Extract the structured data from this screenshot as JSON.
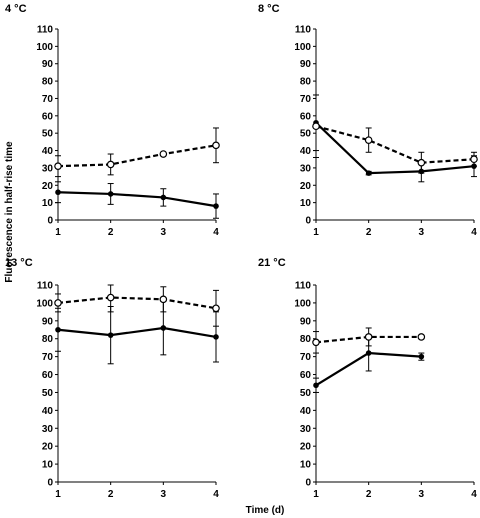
{
  "figure": {
    "ylabel": "Fluorescence in half-rise time",
    "xlabel": "Time (d)"
  },
  "chart_data": [
    {
      "type": "line",
      "title": "4 °C",
      "x": [
        1,
        2,
        3,
        4
      ],
      "xticks": [
        1,
        2,
        3,
        4
      ],
      "ylim": [
        0,
        110
      ],
      "yticks": [
        0,
        10,
        20,
        30,
        40,
        50,
        60,
        70,
        80,
        90,
        100,
        110
      ],
      "series": [
        {
          "style": "solid",
          "marker": "filled-circle",
          "values": [
            16,
            15,
            13,
            8
          ],
          "errors": [
            6,
            6,
            5,
            7
          ]
        },
        {
          "style": "dashed",
          "marker": "open-circle",
          "values": [
            31,
            32,
            38,
            43
          ],
          "errors": [
            6,
            6,
            1,
            10
          ]
        }
      ]
    },
    {
      "type": "line",
      "title": "8 °C",
      "x": [
        1,
        2,
        3,
        4
      ],
      "xticks": [
        1,
        2,
        3,
        4
      ],
      "ylim": [
        0,
        110
      ],
      "yticks": [
        0,
        10,
        20,
        30,
        40,
        50,
        60,
        70,
        80,
        90,
        100,
        110
      ],
      "series": [
        {
          "style": "solid",
          "marker": "filled-circle",
          "values": [
            56,
            27,
            28,
            31
          ],
          "errors": [
            16,
            1,
            6,
            6
          ]
        },
        {
          "style": "dashed",
          "marker": "open-circle",
          "values": [
            54,
            46,
            33,
            35
          ],
          "errors": [
            18,
            7,
            6,
            4
          ]
        }
      ]
    },
    {
      "type": "line",
      "title": "13 °C",
      "x": [
        1,
        2,
        3,
        4
      ],
      "xticks": [
        1,
        2,
        3,
        4
      ],
      "ylim": [
        0,
        110
      ],
      "yticks": [
        0,
        10,
        20,
        30,
        40,
        50,
        60,
        70,
        80,
        90,
        100,
        110
      ],
      "series": [
        {
          "style": "solid",
          "marker": "filled-circle",
          "values": [
            85,
            82,
            86,
            81
          ],
          "errors": [
            12,
            16,
            15,
            14
          ]
        },
        {
          "style": "dashed",
          "marker": "open-circle",
          "values": [
            100,
            103,
            102,
            97
          ],
          "errors": [
            5,
            8,
            7,
            10
          ]
        }
      ]
    },
    {
      "type": "line",
      "title": "21 °C",
      "x": [
        1,
        2,
        3
      ],
      "xticks": [
        1,
        2,
        3,
        4
      ],
      "ylim": [
        0,
        110
      ],
      "yticks": [
        0,
        10,
        20,
        30,
        40,
        50,
        60,
        70,
        80,
        90,
        100,
        110
      ],
      "series": [
        {
          "style": "solid",
          "marker": "filled-circle",
          "values": [
            54,
            72,
            70
          ],
          "errors": [
            4,
            10,
            2
          ]
        },
        {
          "style": "dashed",
          "marker": "open-circle",
          "values": [
            78,
            81,
            81
          ],
          "errors": [
            6,
            5,
            1
          ]
        }
      ]
    }
  ]
}
